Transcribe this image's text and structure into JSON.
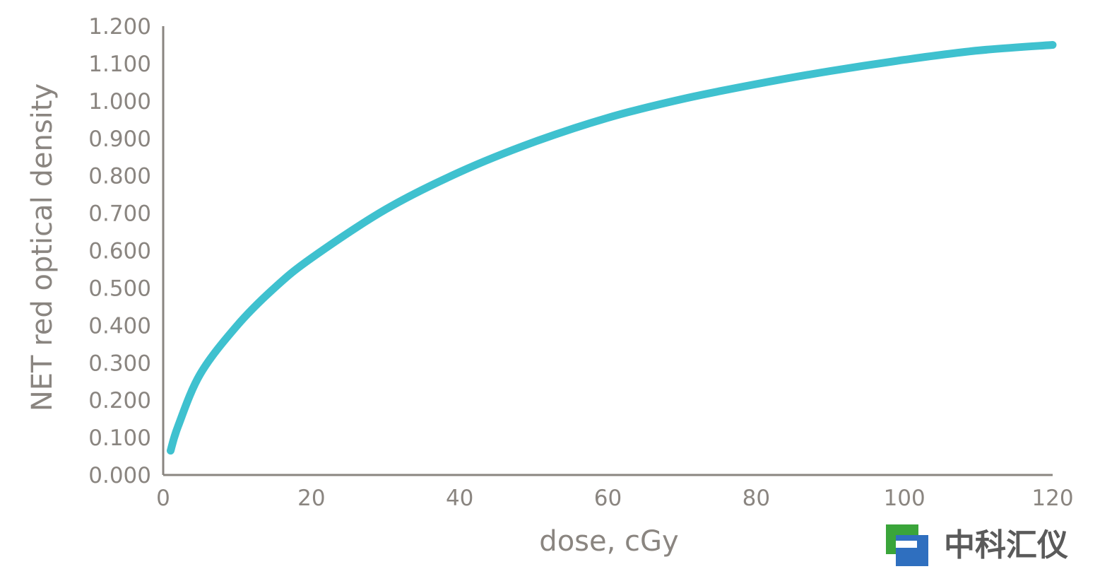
{
  "chart_data": {
    "type": "line",
    "xlabel": "dose, cGy",
    "ylabel": "NET red optical density",
    "xlim": [
      0,
      120
    ],
    "ylim": [
      0,
      1.2
    ],
    "x_ticks": [
      "0",
      "20",
      "40",
      "60",
      "80",
      "100",
      "120"
    ],
    "y_ticks": [
      "0.000",
      "0.100",
      "0.200",
      "0.300",
      "0.400",
      "0.500",
      "0.600",
      "0.700",
      "0.800",
      "0.900",
      "1.000",
      "1.100",
      "1.200"
    ],
    "grid": false,
    "series": [
      {
        "color": "#3fc1cf",
        "x": [
          1,
          2,
          5,
          10,
          15,
          20,
          30,
          40,
          50,
          60,
          70,
          80,
          90,
          100,
          110,
          120
        ],
        "y": [
          0.065,
          0.13,
          0.27,
          0.4,
          0.5,
          0.58,
          0.71,
          0.81,
          0.89,
          0.955,
          1.005,
          1.045,
          1.08,
          1.11,
          1.135,
          1.15
        ]
      }
    ]
  },
  "colors": {
    "axis": "#8a8580",
    "series": "#3fc1cf"
  },
  "watermark": {
    "text": "中科汇仪",
    "icon": "zkhy-logo-icon"
  }
}
